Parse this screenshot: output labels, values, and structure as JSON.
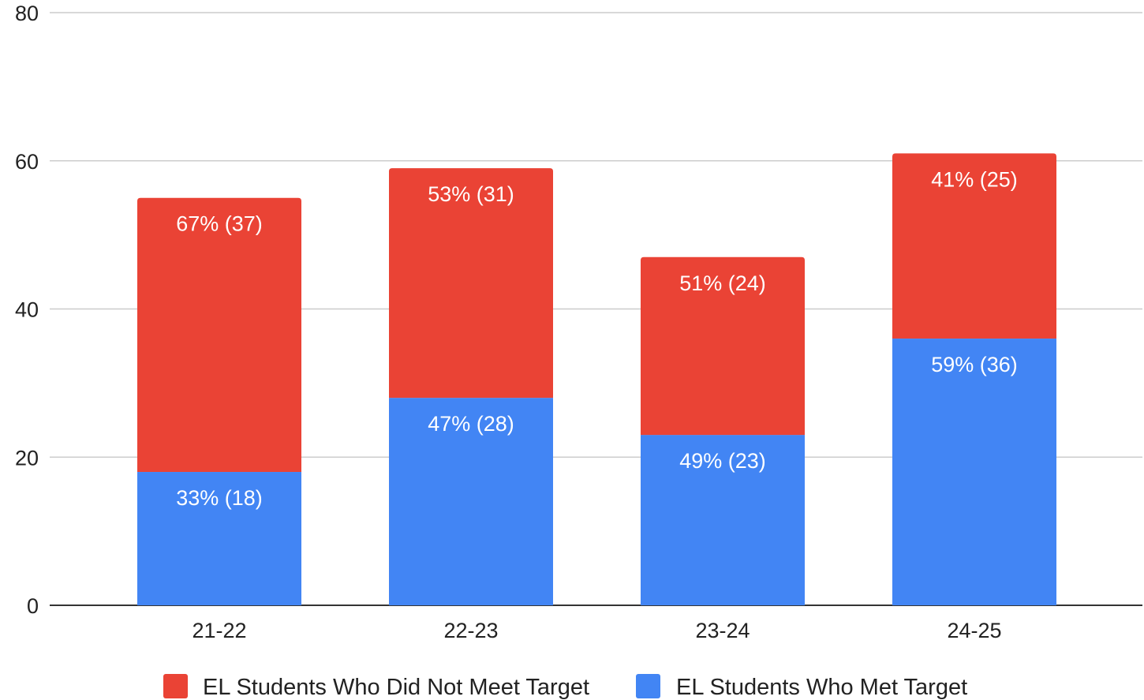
{
  "chart_data": {
    "type": "bar",
    "stacked": true,
    "categories": [
      "21-22",
      "22-23",
      "23-24",
      "24-25"
    ],
    "series": [
      {
        "name": "EL Students Who Met Target",
        "color": "#4285f4",
        "values": [
          18,
          28,
          23,
          36
        ],
        "labels": [
          "33% (18)",
          "47% (28)",
          "49% (23)",
          "59% (36)"
        ]
      },
      {
        "name": "EL Students Who Did Not Meet Target",
        "color": "#ea4335",
        "values": [
          37,
          31,
          24,
          25
        ],
        "labels": [
          "67% (37)",
          "53% (31)",
          "51% (24)",
          "41% (25)"
        ]
      }
    ],
    "yticks": [
      0,
      20,
      40,
      60,
      80
    ],
    "ylim": [
      0,
      80
    ],
    "grid": true,
    "legend": {
      "position": "bottom",
      "entries": [
        {
          "label": "EL Students Who Did Not Meet Target",
          "color": "#ea4335"
        },
        {
          "label": "EL Students Who Met Target",
          "color": "#4285f4"
        }
      ]
    }
  }
}
